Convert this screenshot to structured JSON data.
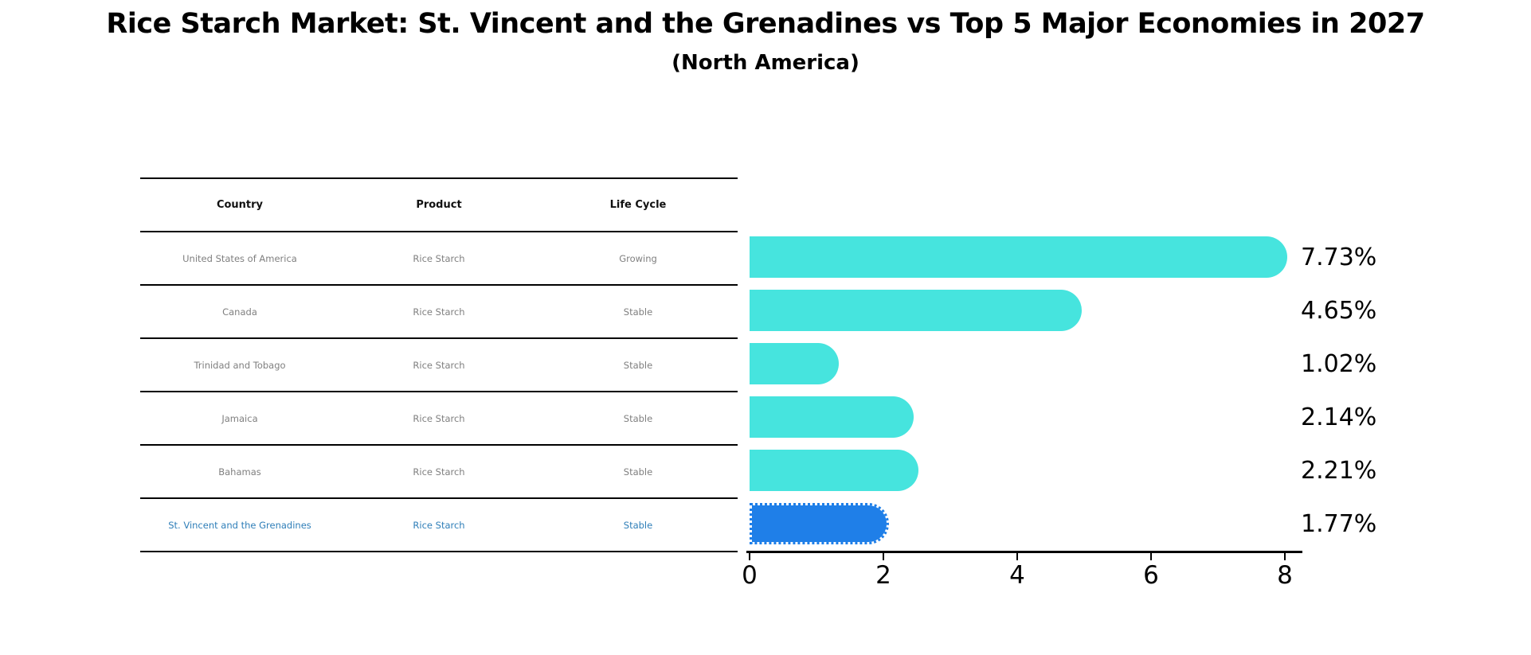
{
  "title": "Rice Starch Market: St. Vincent and the Grenadines vs Top 5 Major Economies in 2027",
  "subtitle": "(North America)",
  "table": {
    "headers": [
      "Country",
      "Product",
      "Life Cycle"
    ],
    "rows": [
      {
        "country": "United States of America",
        "product": "Rice Starch",
        "life_cycle": "Growing",
        "highlighted": false
      },
      {
        "country": "Canada",
        "product": "Rice Starch",
        "life_cycle": "Stable",
        "highlighted": false
      },
      {
        "country": "Trinidad and Tobago",
        "product": "Rice Starch",
        "life_cycle": "Stable",
        "highlighted": false
      },
      {
        "country": "Jamaica",
        "product": "Rice Starch",
        "life_cycle": "Stable",
        "highlighted": false
      },
      {
        "country": "Bahamas",
        "product": "Rice Starch",
        "life_cycle": "Stable",
        "highlighted": false
      },
      {
        "country": "St. Vincent and the Grenadines",
        "product": "Rice Starch",
        "life_cycle": "Stable",
        "highlighted": true
      }
    ]
  },
  "chart_data": {
    "type": "bar",
    "orientation": "horizontal",
    "title": "Rice Starch Market: St. Vincent and the Grenadines vs Top 5 Major Economies in 2027",
    "subtitle": "(North America)",
    "categories": [
      "United States of America",
      "Canada",
      "Trinidad and Tobago",
      "Jamaica",
      "Bahamas",
      "St. Vincent and the Grenadines"
    ],
    "values": [
      7.73,
      4.65,
      1.02,
      2.14,
      2.21,
      1.77
    ],
    "value_labels": [
      "7.73%",
      "4.65%",
      "1.02%",
      "2.14%",
      "2.21%",
      "1.77%"
    ],
    "xlim": [
      0,
      8
    ],
    "x_ticks": [
      0,
      2,
      4,
      6,
      8
    ],
    "grid": false,
    "legend": false,
    "bar_color": "#46e4de",
    "highlight_color": "#1f7fe8",
    "highlight_text_color": "#2e7eb8",
    "highlight_index": 5,
    "highlight_border_style": "dotted"
  }
}
